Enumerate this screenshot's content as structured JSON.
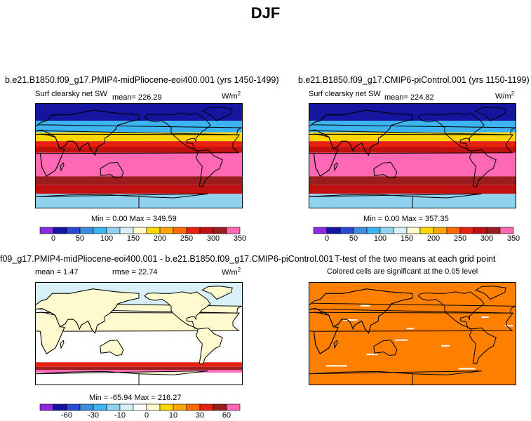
{
  "title": "DJF",
  "panels": [
    {
      "title": "b.e21.B1850.f09_g17.PMIP4-midPliocene-eoi400.001 (yrs 1450-1499)",
      "variable": "Surf clearsky net SW",
      "mean_text": "mean= 226.29",
      "units": "W/m",
      "units_exp": "2",
      "minmax": "Min =   0.00 Max = 349.59"
    },
    {
      "title": "b.e21.B1850.f09_g17.CMIP6-piControl.001 (yrs 1150-1199)",
      "variable": "Surf clearsky net SW",
      "mean_text": "mean= 224.82",
      "units": "W/m",
      "units_exp": "2",
      "minmax": "Min =   0.00 Max = 357.35"
    },
    {
      "title": "f09_g17.PMIP4-midPliocene-eoi400.001 - b.e21.B1850.f09_g17.CMIP6-piControl.001",
      "mean_text": "mean =   1.47",
      "rmse_text": "rmse =  22.74",
      "units": "W/m",
      "units_exp": "2",
      "minmax": "Min = -65.94 Max = 216.27"
    },
    {
      "title": "T-test of the two means at each grid point",
      "subtitle": "Colored cells are significant at the 0.05 level"
    }
  ],
  "colorbars": {
    "abs_colors": [
      "#8a2be2",
      "#1515a0",
      "#2a4bd0",
      "#3d8ce0",
      "#3cb4f0",
      "#8ed2f0",
      "#d8f0f8",
      "#fffacd",
      "#ffd700",
      "#ffa500",
      "#ff6a00",
      "#e82010",
      "#c01010",
      "#9a1e1e",
      "#ff69b4"
    ],
    "abs_ticks": [
      "0",
      "50",
      "100",
      "150",
      "200",
      "250",
      "300",
      "350"
    ],
    "diff_colors": [
      "#8a2be2",
      "#1515a0",
      "#2a4bd0",
      "#3d8ce0",
      "#3cb4f0",
      "#8ed2f0",
      "#d8f0f8",
      "#ffffff",
      "#fffacd",
      "#ffd700",
      "#ffa500",
      "#ff6a00",
      "#e82010",
      "#9a1e1e",
      "#ff69b4"
    ],
    "diff_ticks": [
      "-60",
      "-30",
      "-10",
      "0",
      "10",
      "30",
      "60"
    ]
  },
  "chart_data": [
    {
      "type": "heatmap",
      "title": "b.e21.B1850.f09_g17.PMIP4-midPliocene-eoi400.001 (yrs 1450-1499)",
      "variable": "Surf clearsky net SW",
      "units": "W/m2",
      "mean": 226.29,
      "min": 0.0,
      "max": 349.59,
      "latitude_band_values": [
        {
          "lat_range": [
            60,
            90
          ],
          "value": 0
        },
        {
          "lat_range": [
            40,
            60
          ],
          "value": 75
        },
        {
          "lat_range": [
            25,
            40
          ],
          "value": 175
        },
        {
          "lat_range": [
            15,
            25
          ],
          "value": 250
        },
        {
          "lat_range": [
            5,
            15
          ],
          "value": 290
        },
        {
          "lat_range": [
            -35,
            5
          ],
          "value": 325
        },
        {
          "lat_range": [
            -50,
            -35
          ],
          "value": 300
        },
        {
          "lat_range": [
            -65,
            -50
          ],
          "value": 280
        },
        {
          "lat_range": [
            -90,
            -65
          ],
          "value": 100
        }
      ]
    },
    {
      "type": "heatmap",
      "title": "b.e21.B1850.f09_g17.CMIP6-piControl.001 (yrs 1150-1199)",
      "variable": "Surf clearsky net SW",
      "units": "W/m2",
      "mean": 224.82,
      "min": 0.0,
      "max": 357.35,
      "latitude_band_values": [
        {
          "lat_range": [
            60,
            90
          ],
          "value": 0
        },
        {
          "lat_range": [
            40,
            60
          ],
          "value": 75
        },
        {
          "lat_range": [
            25,
            40
          ],
          "value": 175
        },
        {
          "lat_range": [
            15,
            25
          ],
          "value": 250
        },
        {
          "lat_range": [
            5,
            15
          ],
          "value": 290
        },
        {
          "lat_range": [
            -35,
            5
          ],
          "value": 325
        },
        {
          "lat_range": [
            -50,
            -35
          ],
          "value": 300
        },
        {
          "lat_range": [
            -65,
            -50
          ],
          "value": 280
        },
        {
          "lat_range": [
            -90,
            -65
          ],
          "value": 100
        }
      ]
    },
    {
      "type": "heatmap",
      "title": "f09_g17.PMIP4-midPliocene-eoi400.001 - b.e21.B1850.f09_g17.CMIP6-piControl.001",
      "units": "W/m2",
      "mean": 1.47,
      "rmse": 22.74,
      "min": -65.94,
      "max": 216.27,
      "latitude_band_values": [
        {
          "lat_range": [
            45,
            90
          ],
          "value": 0
        },
        {
          "lat_range": [
            -50,
            45
          ],
          "value": 2
        },
        {
          "lat_range": [
            -58,
            -50
          ],
          "value": 50
        },
        {
          "lat_range": [
            -63,
            -58
          ],
          "value": 100
        },
        {
          "lat_range": [
            -68,
            -63
          ],
          "value": 150
        },
        {
          "lat_range": [
            -90,
            -68
          ],
          "value": 5
        }
      ]
    },
    {
      "type": "heatmap",
      "title": "T-test of the two means at each grid point",
      "subtitle": "Colored cells are significant at the 0.05 level",
      "significance_level": 0.05,
      "significant_fraction": 0.95
    }
  ]
}
